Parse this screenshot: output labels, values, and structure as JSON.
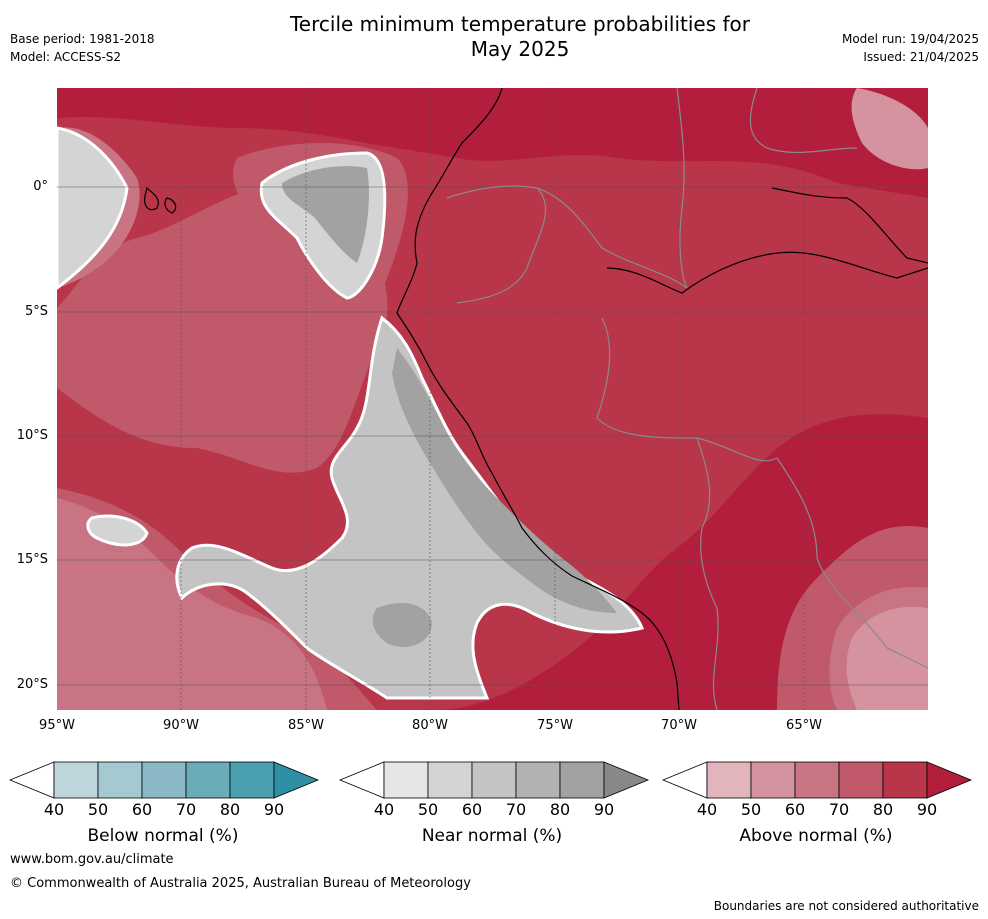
{
  "title_line1": "Tercile minimum temperature probabilities for",
  "title_line2": "May 2025",
  "base_period": "Base period: 1981-2018",
  "model": "Model: ACCESS-S2",
  "model_run": "Model run: 19/04/2025",
  "issued": "Issued: 21/04/2025",
  "lat_labels": [
    "0°",
    "5°S",
    "10°S",
    "15°S",
    "20°S"
  ],
  "lon_labels": [
    "95°W",
    "90°W",
    "85°W",
    "80°W",
    "75°W",
    "70°W",
    "65°W"
  ],
  "colorbars": [
    {
      "label": "Below normal (%)",
      "ticks": [
        "40",
        "50",
        "60",
        "70",
        "80",
        "90"
      ],
      "colors": [
        "#ffffff",
        "#bdd6dc",
        "#a4c9d1",
        "#8ab9c5",
        "#6cacb9",
        "#4aa0b1",
        "#2e8fa5"
      ]
    },
    {
      "label": "Near normal (%)",
      "ticks": [
        "40",
        "50",
        "60",
        "70",
        "80",
        "90"
      ],
      "colors": [
        "#ffffff",
        "#e6e6e6",
        "#d4d4d4",
        "#c4c4c4",
        "#b2b2b2",
        "#a2a2a2",
        "#888888"
      ]
    },
    {
      "label": "Above normal (%)",
      "ticks": [
        "40",
        "50",
        "60",
        "70",
        "80",
        "90"
      ],
      "colors": [
        "#ffffff",
        "#e2b5bd",
        "#d4939e",
        "#c87482",
        "#c05a6a",
        "#b8354a",
        "#b31e3c"
      ]
    }
  ],
  "website": "www.bom.gov.au/climate",
  "copyright": "© Commonwealth of Australia 2025, Australian Bureau of Meteorology",
  "disclaimer": "Boundaries are not considered authoritative"
}
